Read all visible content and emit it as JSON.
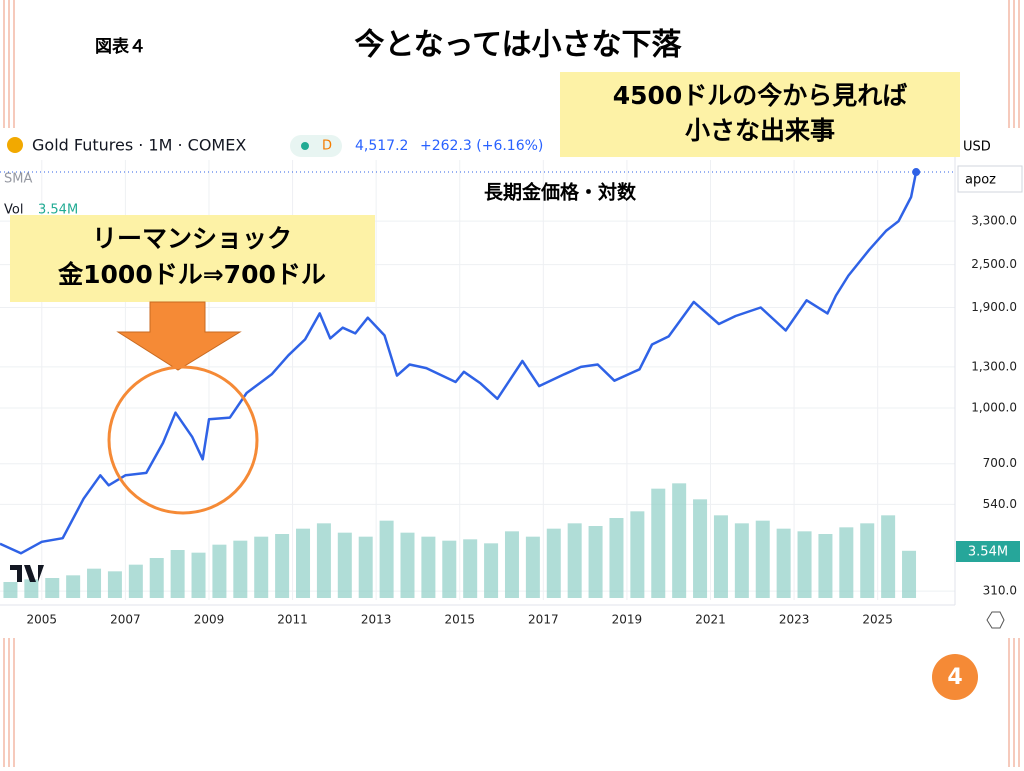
{
  "slide": {
    "figure_label": "図表４",
    "title": "今となっては小さな下落",
    "page_number": "4",
    "highlight_box": [
      "4500ドルの今から見れば",
      "小さな出来事"
    ],
    "callout_box": [
      "リーマンショック",
      "金1000ドル⇒700ドル"
    ]
  },
  "chart_data": {
    "type": "line",
    "title": "長期金価格・対数",
    "header": {
      "symbol": "Gold Futures · 1M · COMEX",
      "badge": "D",
      "last": "4,517.2",
      "change": "+262.3 (+6.16%)",
      "currency": "USD",
      "scale_menu": "apoz",
      "sma": "SMA",
      "vol_label": "Vol",
      "vol_value": "3.54M"
    },
    "x": [
      2004.0,
      2004.5,
      2005.0,
      2005.5,
      2006.0,
      2006.4,
      2006.6,
      2007.0,
      2007.5,
      2007.9,
      2008.2,
      2008.6,
      2008.85,
      2009.0,
      2009.5,
      2009.9,
      2010.5,
      2010.9,
      2011.3,
      2011.65,
      2011.9,
      2012.2,
      2012.5,
      2012.8,
      2013.2,
      2013.5,
      2013.8,
      2014.2,
      2014.9,
      2015.1,
      2015.5,
      2015.9,
      2016.5,
      2016.9,
      2017.5,
      2017.9,
      2018.3,
      2018.7,
      2019.3,
      2019.6,
      2020.0,
      2020.6,
      2021.2,
      2021.6,
      2022.2,
      2022.8,
      2023.3,
      2023.8,
      2024.0,
      2024.3,
      2024.8,
      2025.2,
      2025.5,
      2025.8,
      2025.92
    ],
    "series": [
      {
        "name": "Gold Futures",
        "color": "#2f62e6",
        "values": [
          420,
          395,
          425,
          435,
          560,
          650,
          610,
          650,
          660,
          800,
          970,
          830,
          720,
          930,
          940,
          1100,
          1240,
          1400,
          1550,
          1830,
          1560,
          1670,
          1610,
          1780,
          1590,
          1230,
          1320,
          1290,
          1180,
          1260,
          1170,
          1060,
          1350,
          1150,
          1240,
          1300,
          1320,
          1190,
          1280,
          1500,
          1580,
          1970,
          1710,
          1800,
          1900,
          1640,
          1990,
          1830,
          2050,
          2330,
          2750,
          3100,
          3300,
          3850,
          4517.2
        ]
      }
    ],
    "volume": {
      "color": "#8fcfc6",
      "x": [
        2004.25,
        2004.75,
        2005.25,
        2005.75,
        2006.25,
        2006.75,
        2007.25,
        2007.75,
        2008.25,
        2008.75,
        2009.25,
        2009.75,
        2010.25,
        2010.75,
        2011.25,
        2011.75,
        2012.25,
        2012.75,
        2013.25,
        2013.75,
        2014.25,
        2014.75,
        2015.25,
        2015.75,
        2016.25,
        2016.75,
        2017.25,
        2017.75,
        2018.25,
        2018.75,
        2019.25,
        2019.75,
        2020.25,
        2020.75,
        2021.25,
        2021.75,
        2022.25,
        2022.75,
        2023.25,
        2023.75,
        2024.25,
        2024.75,
        2025.25,
        2025.75
      ],
      "values": [
        1.2,
        1.4,
        1.5,
        1.7,
        2.2,
        2.0,
        2.5,
        3.0,
        3.6,
        3.4,
        4.0,
        4.3,
        4.6,
        4.8,
        5.2,
        5.6,
        4.9,
        4.6,
        5.8,
        4.9,
        4.6,
        4.3,
        4.4,
        4.1,
        5.0,
        4.6,
        5.2,
        5.6,
        5.4,
        6.0,
        6.5,
        8.2,
        8.6,
        7.4,
        6.2,
        5.6,
        5.8,
        5.2,
        5.0,
        4.8,
        5.3,
        5.6,
        6.2,
        3.54
      ]
    },
    "xlim": [
      2004,
      2026.85
    ],
    "xticks": [
      2005,
      2007,
      2009,
      2011,
      2013,
      2015,
      2017,
      2019,
      2021,
      2023,
      2025
    ],
    "ylim": [
      293,
      5200
    ],
    "log_scale": true,
    "grid": true,
    "yticks": [
      {
        "value": 310,
        "label": "310.0"
      },
      {
        "value": 540,
        "label": "540.0"
      },
      {
        "value": 700,
        "label": "700.0"
      },
      {
        "value": 1000,
        "label": "1,000.0"
      },
      {
        "value": 1300,
        "label": "1,300.0"
      },
      {
        "value": 1900,
        "label": "1,900.0"
      },
      {
        "value": 2500,
        "label": "2,500.0"
      },
      {
        "value": 3300,
        "label": "3,300.0"
      }
    ]
  }
}
